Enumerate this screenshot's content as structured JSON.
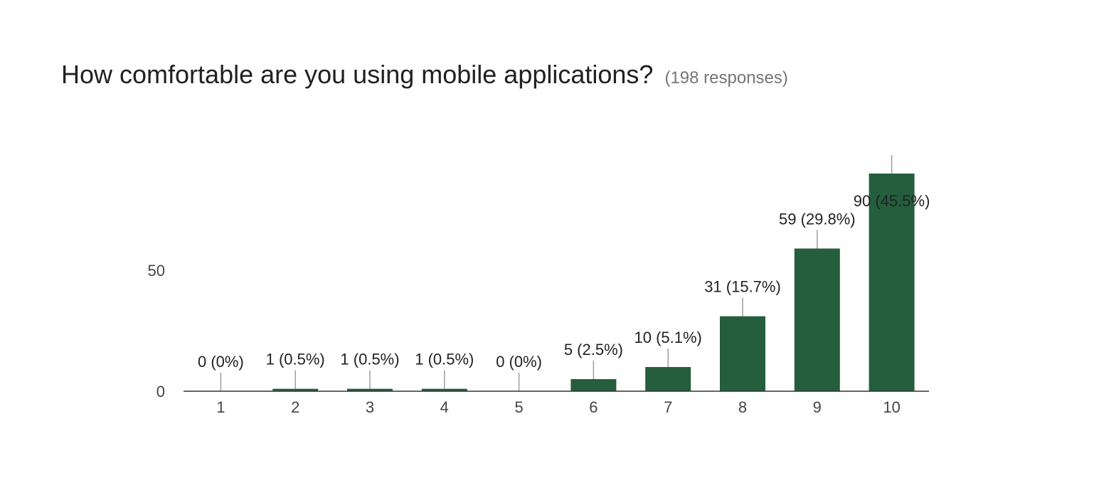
{
  "header": {
    "title": "How comfortable are you using mobile applications?",
    "responses": "(198 responses)"
  },
  "chart_data": {
    "type": "bar",
    "title": "How comfortable are you using mobile applications?",
    "categories": [
      "1",
      "2",
      "3",
      "4",
      "5",
      "6",
      "7",
      "8",
      "9",
      "10"
    ],
    "values": [
      0,
      1,
      1,
      1,
      0,
      5,
      10,
      31,
      59,
      90
    ],
    "data_labels": [
      "0 (0%)",
      "1 (0.5%)",
      "1 (0.5%)",
      "1 (0.5%)",
      "0 (0%)",
      "5 (2.5%)",
      "10 (5.1%)",
      "31 (15.7%)",
      "59 (29.8%)",
      "90 (45.5%)"
    ],
    "y_ticks": [
      0,
      50
    ],
    "xlabel": "",
    "ylabel": "",
    "ylim": [
      0,
      90
    ],
    "grid": false,
    "bar_color": "#245e3c"
  }
}
